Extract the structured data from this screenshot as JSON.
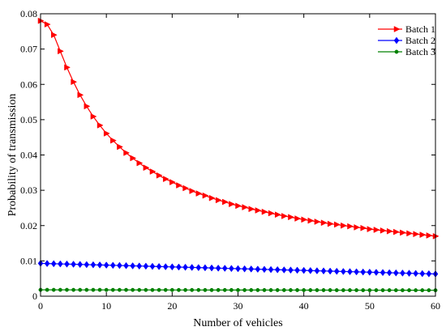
{
  "chart_data": {
    "type": "line",
    "xlabel": "Number of vehicles",
    "ylabel": "Probability of transmission",
    "xlim": [
      0,
      60
    ],
    "ylim": [
      0,
      0.08
    ],
    "x_ticks": [
      0,
      10,
      20,
      30,
      40,
      50,
      60
    ],
    "y_ticks": [
      0,
      0.01,
      0.02,
      0.03,
      0.04,
      0.05,
      0.06,
      0.07,
      0.08
    ],
    "x_tick_labels": [
      "0",
      "10",
      "20",
      "30",
      "40",
      "50",
      "60"
    ],
    "y_tick_labels": [
      "0",
      "0.01",
      "0.02",
      "0.03",
      "0.04",
      "0.05",
      "0.06",
      "0.07",
      "0.08"
    ],
    "grid": false,
    "legend_position": "top-right",
    "x": [
      0,
      1,
      2,
      3,
      4,
      5,
      6,
      7,
      8,
      9,
      10,
      11,
      12,
      13,
      14,
      15,
      16,
      17,
      18,
      19,
      20,
      21,
      22,
      23,
      24,
      25,
      26,
      27,
      28,
      29,
      30,
      31,
      32,
      33,
      34,
      35,
      36,
      37,
      38,
      39,
      40,
      41,
      42,
      43,
      44,
      45,
      46,
      47,
      48,
      49,
      50,
      51,
      52,
      53,
      54,
      55,
      56,
      57,
      58,
      59,
      60
    ],
    "series": [
      {
        "name": "Batch 1",
        "color": "#ff0000",
        "marker": "triangle-right",
        "values": [
          0.078,
          0.077,
          0.074,
          0.0694,
          0.0648,
          0.0607,
          0.057,
          0.0538,
          0.0509,
          0.0484,
          0.0461,
          0.0441,
          0.0423,
          0.0406,
          0.0391,
          0.0377,
          0.0364,
          0.0353,
          0.0342,
          0.0332,
          0.0323,
          0.0314,
          0.0306,
          0.0298,
          0.0291,
          0.0285,
          0.0278,
          0.0272,
          0.0267,
          0.0261,
          0.0256,
          0.0252,
          0.0247,
          0.0243,
          0.0239,
          0.0235,
          0.0231,
          0.0227,
          0.0224,
          0.022,
          0.0217,
          0.0214,
          0.0211,
          0.0208,
          0.0205,
          0.0203,
          0.02,
          0.0198,
          0.0195,
          0.0193,
          0.019,
          0.0188,
          0.0186,
          0.0184,
          0.0182,
          0.018,
          0.0178,
          0.0176,
          0.0174,
          0.0172,
          0.017
        ]
      },
      {
        "name": "Batch 2",
        "color": "#0000ff",
        "marker": "diamond",
        "values": [
          0.0093,
          0.00925,
          0.0092,
          0.00915,
          0.0091,
          0.00905,
          0.009,
          0.00895,
          0.0089,
          0.00885,
          0.0088,
          0.00875,
          0.0087,
          0.00865,
          0.0086,
          0.00855,
          0.0085,
          0.00845,
          0.0084,
          0.00835,
          0.0083,
          0.00825,
          0.0082,
          0.00815,
          0.0081,
          0.00805,
          0.008,
          0.00795,
          0.0079,
          0.00785,
          0.0078,
          0.00775,
          0.0077,
          0.00765,
          0.0076,
          0.00755,
          0.0075,
          0.00745,
          0.0074,
          0.00735,
          0.0073,
          0.00725,
          0.0072,
          0.00715,
          0.0071,
          0.00705,
          0.007,
          0.00695,
          0.0069,
          0.00685,
          0.0068,
          0.00675,
          0.0067,
          0.00665,
          0.0066,
          0.00655,
          0.0065,
          0.00645,
          0.0064,
          0.00635,
          0.0063
        ]
      },
      {
        "name": "Batch 3",
        "color": "#008000",
        "marker": "circle",
        "values": [
          0.0018,
          0.0018,
          0.0018,
          0.0018,
          0.0018,
          0.00179,
          0.00179,
          0.00179,
          0.00179,
          0.00179,
          0.00178,
          0.00178,
          0.00178,
          0.00178,
          0.00178,
          0.00177,
          0.00177,
          0.00177,
          0.00177,
          0.00177,
          0.00176,
          0.00176,
          0.00176,
          0.00176,
          0.00176,
          0.00175,
          0.00175,
          0.00175,
          0.00175,
          0.00175,
          0.00174,
          0.00174,
          0.00174,
          0.00174,
          0.00174,
          0.00173,
          0.00173,
          0.00173,
          0.00173,
          0.00173,
          0.00172,
          0.00172,
          0.00172,
          0.00172,
          0.00172,
          0.00171,
          0.00171,
          0.00171,
          0.00171,
          0.00171,
          0.0017,
          0.0017,
          0.0017,
          0.0017,
          0.0017,
          0.00169,
          0.00169,
          0.00169,
          0.00169,
          0.00169,
          0.00168
        ]
      }
    ]
  }
}
